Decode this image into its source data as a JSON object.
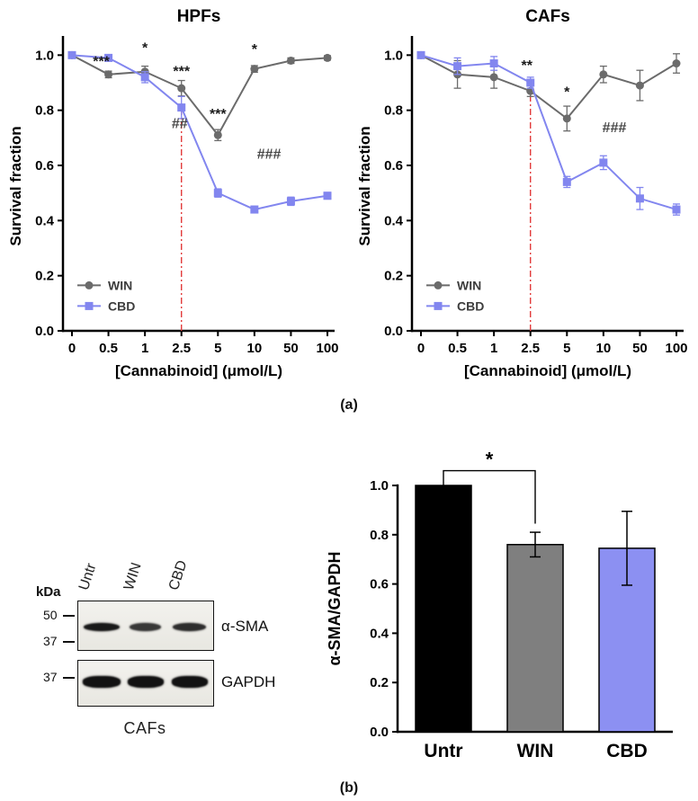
{
  "panel_labels": {
    "a": "(a)",
    "b": "(b)"
  },
  "colors": {
    "win": "#6b6b6b",
    "cbd": "#8286ef",
    "ref_line": "#e23b3b"
  },
  "chart_data": [
    {
      "type": "line",
      "title": "HPFs",
      "xlabel": "[Cannabinoid] (μmol/L)",
      "ylabel": "Survival fraction",
      "categories": [
        "0",
        "0.5",
        "1",
        "2.5",
        "5",
        "10",
        "50",
        "100"
      ],
      "yticks": [
        "0.0",
        "0.2",
        "0.4",
        "0.6",
        "0.8",
        "1.0"
      ],
      "ylim": [
        0,
        1.05
      ],
      "grid": false,
      "legend_position": "lower-left",
      "ref_line_at": "2.5",
      "ref_line_top": 0.8,
      "series": [
        {
          "name": "WIN",
          "marker": "circle",
          "color_key": "win",
          "values": [
            1.0,
            0.93,
            0.94,
            0.88,
            0.71,
            0.95,
            0.98,
            0.99
          ],
          "errors": [
            0.005,
            0.012,
            0.02,
            0.028,
            0.02,
            0.012,
            0.01,
            0.008
          ]
        },
        {
          "name": "CBD",
          "marker": "square",
          "color_key": "cbd",
          "values": [
            1.0,
            0.99,
            0.92,
            0.81,
            0.5,
            0.44,
            0.47,
            0.49
          ],
          "errors": [
            0.005,
            0.01,
            0.02,
            0.04,
            0.015,
            0.012,
            0.015,
            0.012
          ]
        }
      ],
      "annotations": [
        {
          "text": "***",
          "cat": 1,
          "y": 0.96,
          "dx": -8
        },
        {
          "text": "*",
          "cat": 2,
          "y": 1.01
        },
        {
          "text": "***",
          "cat": 3,
          "y": 0.925
        },
        {
          "text": "***",
          "cat": 4,
          "y": 0.77
        },
        {
          "text": "*",
          "cat": 5,
          "y": 1.005
        },
        {
          "text": "##",
          "cat": 3,
          "y": 0.735,
          "dx": -2,
          "color": "#474747"
        },
        {
          "text": "###",
          "cat": 5.4,
          "y": 0.625,
          "color": "#474747"
        }
      ]
    },
    {
      "type": "line",
      "title": "CAFs",
      "xlabel": "[Cannabinoid] (μmol/L)",
      "ylabel": "Survival fraction",
      "categories": [
        "0",
        "0.5",
        "1",
        "2.5",
        "5",
        "10",
        "50",
        "100"
      ],
      "yticks": [
        "0.0",
        "0.2",
        "0.4",
        "0.6",
        "0.8",
        "1.0"
      ],
      "ylim": [
        0,
        1.05
      ],
      "grid": false,
      "legend_position": "lower-left",
      "ref_line_at": "2.5",
      "ref_line_top": 0.9,
      "series": [
        {
          "name": "WIN",
          "marker": "circle",
          "color_key": "win",
          "values": [
            1.0,
            0.93,
            0.92,
            0.87,
            0.77,
            0.93,
            0.89,
            0.97
          ],
          "errors": [
            0.005,
            0.05,
            0.04,
            0.02,
            0.045,
            0.03,
            0.055,
            0.035
          ]
        },
        {
          "name": "CBD",
          "marker": "square",
          "color_key": "cbd",
          "values": [
            1.0,
            0.96,
            0.97,
            0.9,
            0.54,
            0.61,
            0.48,
            0.44
          ],
          "errors": [
            0.005,
            0.03,
            0.025,
            0.02,
            0.02,
            0.025,
            0.04,
            0.02
          ]
        }
      ],
      "annotations": [
        {
          "text": "**",
          "cat": 3,
          "y": 0.945,
          "dx": -4
        },
        {
          "text": "*",
          "cat": 4,
          "y": 0.85
        },
        {
          "text": "###",
          "cat": 5.3,
          "y": 0.72,
          "color": "#474747"
        }
      ]
    },
    {
      "type": "bar",
      "title": "",
      "xlabel": "",
      "ylabel": "α-SMA/GAPDH",
      "categories": [
        "Untr",
        "WIN",
        "CBD"
      ],
      "values": [
        1.0,
        0.76,
        0.745
      ],
      "errors": [
        0,
        0.05,
        0.15
      ],
      "yticks": [
        "0.0",
        "0.2",
        "0.4",
        "0.6",
        "0.8",
        "1.0"
      ],
      "ylim": [
        0,
        1.0
      ],
      "bar_colors": [
        "#000000",
        "#7f7f7f",
        "#8c90f2"
      ],
      "sig": {
        "text": "*",
        "from": 0,
        "to": 1,
        "y_from": 1.0,
        "y_top": 1.06,
        "y_to": 0.845
      }
    }
  ],
  "blot": {
    "kda_label": "kDa",
    "lanes": [
      "Untr",
      "WIN",
      "CBD"
    ],
    "rows": [
      {
        "label": "α-SMA",
        "markers": [
          "50",
          "37"
        ]
      },
      {
        "label": "GAPDH",
        "markers": [
          "37"
        ]
      }
    ],
    "caption": "CAFs"
  }
}
